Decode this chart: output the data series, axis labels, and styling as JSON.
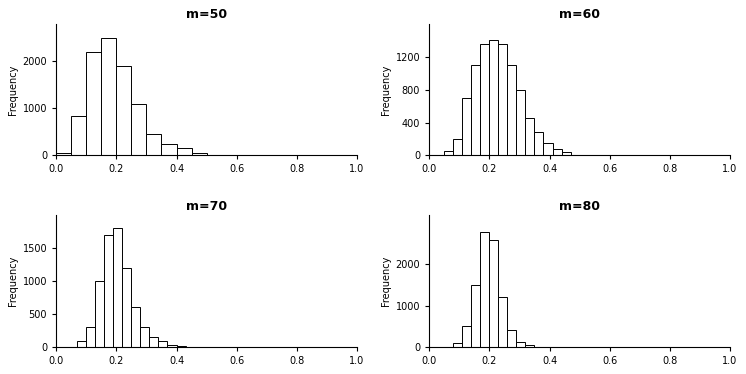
{
  "titles": [
    "m=50",
    "m=60",
    "m=70",
    "m=80"
  ],
  "ylabel": "Frequency",
  "xlim": [
    0.0,
    1.0
  ],
  "xticks": [
    0.0,
    0.2,
    0.4,
    0.6,
    0.8,
    1.0
  ],
  "xtick_labels": [
    "0.0",
    "0.2",
    "0.4",
    "0.6",
    "0.8",
    "1.0"
  ],
  "background": "#ffffff",
  "bar_color": "white",
  "bar_edge_color": "black",
  "m50": {
    "bin_edges": [
      0.0,
      0.05,
      0.1,
      0.15,
      0.2,
      0.25,
      0.3,
      0.35,
      0.4,
      0.45,
      0.5,
      0.55
    ],
    "counts": [
      50,
      850,
      2200,
      2500,
      1900,
      1100,
      450,
      250,
      150,
      50,
      20
    ],
    "ylim": [
      0,
      2800
    ],
    "yticks": [
      0,
      1000,
      2000
    ],
    "ytick_labels": [
      "0",
      "1000",
      "2000"
    ]
  },
  "m60": {
    "bin_edges": [
      0.05,
      0.08,
      0.11,
      0.14,
      0.17,
      0.2,
      0.23,
      0.26,
      0.29,
      0.32,
      0.35,
      0.38,
      0.41,
      0.44,
      0.47,
      0.5
    ],
    "counts": [
      50,
      200,
      700,
      1100,
      1350,
      1400,
      1350,
      1100,
      800,
      450,
      280,
      150,
      80,
      40,
      10
    ],
    "ylim": [
      0,
      1600
    ],
    "yticks": [
      0,
      400,
      800,
      1200
    ],
    "ytick_labels": [
      "0",
      "400",
      "800",
      "1200"
    ]
  },
  "m70": {
    "bin_edges": [
      0.07,
      0.1,
      0.13,
      0.16,
      0.19,
      0.22,
      0.25,
      0.28,
      0.31,
      0.34,
      0.37,
      0.4,
      0.43
    ],
    "counts": [
      80,
      300,
      1000,
      1700,
      1800,
      1200,
      600,
      300,
      150,
      80,
      30,
      10
    ],
    "ylim": [
      0,
      2000
    ],
    "yticks": [
      0,
      500,
      1000,
      1500
    ],
    "ytick_labels": [
      "0",
      "500",
      "1000",
      "1500"
    ]
  },
  "m80": {
    "bin_edges": [
      0.08,
      0.11,
      0.14,
      0.17,
      0.2,
      0.23,
      0.26,
      0.29,
      0.32,
      0.35
    ],
    "counts": [
      100,
      500,
      1500,
      2800,
      2600,
      1200,
      400,
      120,
      30
    ],
    "ylim": [
      0,
      3200
    ],
    "yticks": [
      0,
      1000,
      2000
    ],
    "ytick_labels": [
      "0",
      "1000",
      "2000"
    ]
  }
}
